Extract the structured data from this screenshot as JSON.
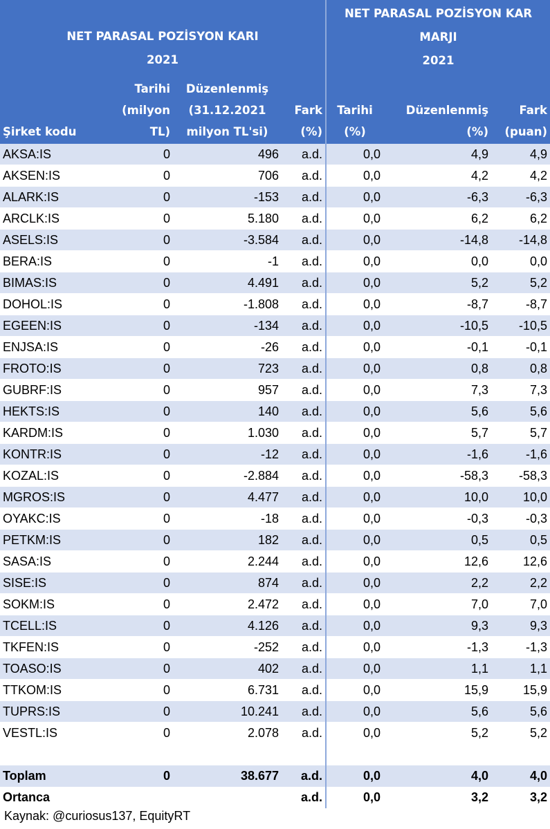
{
  "headers": {
    "group1_title_line1": "NET PARASAL POZİSYON KARI",
    "group1_title_line2": "2021",
    "group2_title_line1": "NET PARASAL POZİSYON KAR",
    "group2_title_line2": "MARJI",
    "group2_title_line3": "2021",
    "col_company": "Şirket kodu",
    "col_tarihi_1": [
      "Tarihi",
      "(milyon",
      "TL)"
    ],
    "col_duzen_1": [
      "Düzenlenmiş",
      "(31.12.2021",
      "milyon TL'si)"
    ],
    "col_fark_1": [
      "Fark",
      "(%)"
    ],
    "col_tarihi_2": [
      "Tarihi",
      "(%)"
    ],
    "col_duzen_2": [
      "Düzenlenmiş",
      "(%)"
    ],
    "col_fark_2": [
      "Fark",
      "(puan)"
    ]
  },
  "rows": [
    [
      "AKSA:IS",
      "0",
      "496",
      "a.d.",
      "0,0",
      "4,9",
      "4,9"
    ],
    [
      "AKSEN:IS",
      "0",
      "706",
      "a.d.",
      "0,0",
      "4,2",
      "4,2"
    ],
    [
      "ALARK:IS",
      "0",
      "-153",
      "a.d.",
      "0,0",
      "-6,3",
      "-6,3"
    ],
    [
      "ARCLK:IS",
      "0",
      "5.180",
      "a.d.",
      "0,0",
      "6,2",
      "6,2"
    ],
    [
      "ASELS:IS",
      "0",
      "-3.584",
      "a.d.",
      "0,0",
      "-14,8",
      "-14,8"
    ],
    [
      "BERA:IS",
      "0",
      "-1",
      "a.d.",
      "0,0",
      "0,0",
      "0,0"
    ],
    [
      "BIMAS:IS",
      "0",
      "4.491",
      "a.d.",
      "0,0",
      "5,2",
      "5,2"
    ],
    [
      "DOHOL:IS",
      "0",
      "-1.808",
      "a.d.",
      "0,0",
      "-8,7",
      "-8,7"
    ],
    [
      "EGEEN:IS",
      "0",
      "-134",
      "a.d.",
      "0,0",
      "-10,5",
      "-10,5"
    ],
    [
      "ENJSA:IS",
      "0",
      "-26",
      "a.d.",
      "0,0",
      "-0,1",
      "-0,1"
    ],
    [
      "FROTO:IS",
      "0",
      "723",
      "a.d.",
      "0,0",
      "0,8",
      "0,8"
    ],
    [
      "GUBRF:IS",
      "0",
      "957",
      "a.d.",
      "0,0",
      "7,3",
      "7,3"
    ],
    [
      "HEKTS:IS",
      "0",
      "140",
      "a.d.",
      "0,0",
      "5,6",
      "5,6"
    ],
    [
      "KARDM:IS",
      "0",
      "1.030",
      "a.d.",
      "0,0",
      "5,7",
      "5,7"
    ],
    [
      "KONTR:IS",
      "0",
      "-12",
      "a.d.",
      "0,0",
      "-1,6",
      "-1,6"
    ],
    [
      "KOZAL:IS",
      "0",
      "-2.884",
      "a.d.",
      "0,0",
      "-58,3",
      "-58,3"
    ],
    [
      "MGROS:IS",
      "0",
      "4.477",
      "a.d.",
      "0,0",
      "10,0",
      "10,0"
    ],
    [
      "OYAKC:IS",
      "0",
      "-18",
      "a.d.",
      "0,0",
      "-0,3",
      "-0,3"
    ],
    [
      "PETKM:IS",
      "0",
      "182",
      "a.d.",
      "0,0",
      "0,5",
      "0,5"
    ],
    [
      "SASA:IS",
      "0",
      "2.244",
      "a.d.",
      "0,0",
      "12,6",
      "12,6"
    ],
    [
      "SISE:IS",
      "0",
      "874",
      "a.d.",
      "0,0",
      "2,2",
      "2,2"
    ],
    [
      "SOKM:IS",
      "0",
      "2.472",
      "a.d.",
      "0,0",
      "7,0",
      "7,0"
    ],
    [
      "TCELL:IS",
      "0",
      "4.126",
      "a.d.",
      "0,0",
      "9,3",
      "9,3"
    ],
    [
      "TKFEN:IS",
      "0",
      "-252",
      "a.d.",
      "0,0",
      "-1,3",
      "-1,3"
    ],
    [
      "TOASO:IS",
      "0",
      "402",
      "a.d.",
      "0,0",
      "1,1",
      "1,1"
    ],
    [
      "TTKOM:IS",
      "0",
      "6.731",
      "a.d.",
      "0,0",
      "15,9",
      "15,9"
    ],
    [
      "TUPRS:IS",
      "0",
      "10.241",
      "a.d.",
      "0,0",
      "5,6",
      "5,6"
    ],
    [
      "VESTL:IS",
      "0",
      "2.078",
      "a.d.",
      "0,0",
      "5,2",
      "5,2"
    ]
  ],
  "total": [
    "Toplam",
    "0",
    "38.677",
    "a.d.",
    "0,0",
    "4,0",
    "4,0"
  ],
  "median": [
    "Ortanca",
    "",
    "",
    "a.d.",
    "0,0",
    "3,2",
    "3,2"
  ],
  "source": "Kaynak: @curiosus137, EquityRT",
  "colors": {
    "header_bg": "#4472c4",
    "band_bg": "#d9e1f2",
    "header_text": "#ffffff"
  }
}
